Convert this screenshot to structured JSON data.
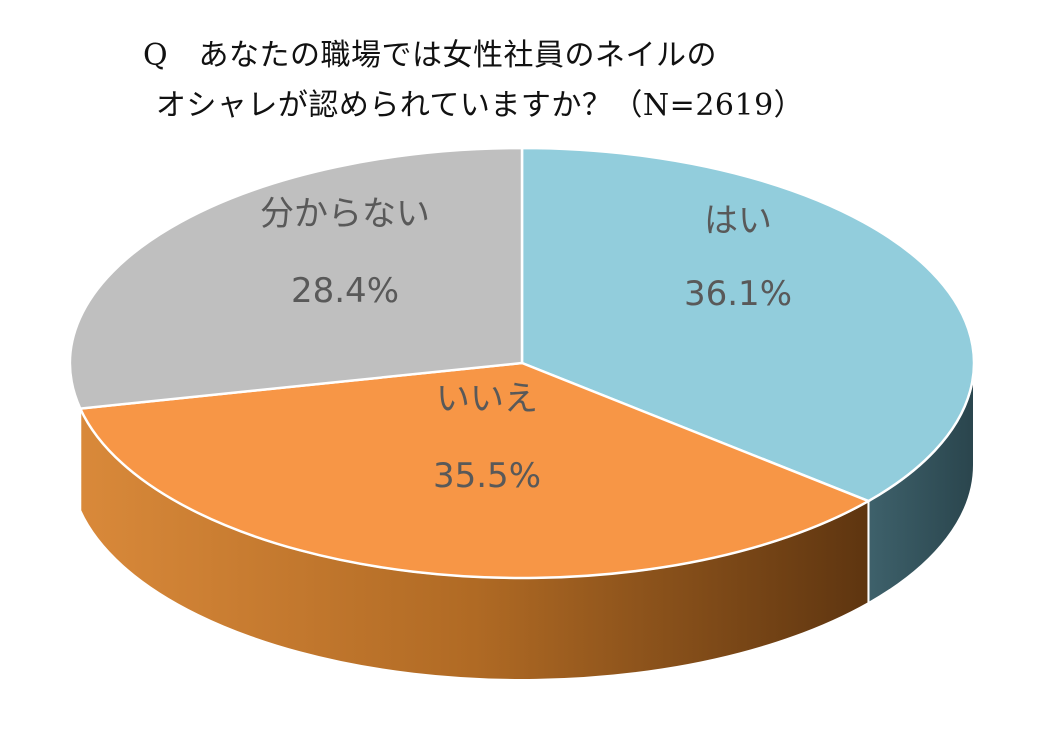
{
  "chart_data": {
    "type": "pie",
    "title_line1": "Q　あなたの職場では女性社員のネイルの",
    "title_line2": "オシャレが認められていますか？（N=2619）",
    "slices": [
      {
        "label": "はい",
        "value": 36.1,
        "value_text": "36.1%",
        "color": "#92CDDC",
        "side_color": "#31535C"
      },
      {
        "label": "いいえ",
        "value": 35.5,
        "value_text": "35.5%",
        "color": "#F79646",
        "side_color": "#9C5A1C"
      },
      {
        "label": "分からない",
        "value": 28.4,
        "value_text": "28.4%",
        "color": "#BFBFBF",
        "side_color": "#7F7F7F"
      }
    ]
  }
}
